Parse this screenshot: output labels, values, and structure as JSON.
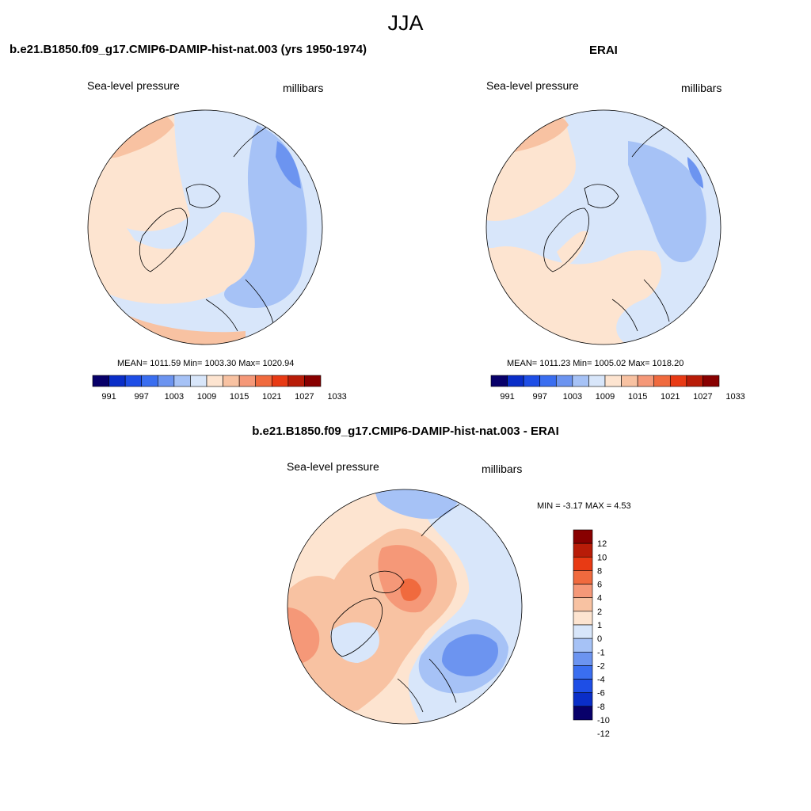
{
  "page_title": "JJA",
  "colors": {
    "abs_levels": [
      "#08006a",
      "#0a2ec8",
      "#1e4ee6",
      "#3a6ef0",
      "#6c94f0",
      "#a6c2f6",
      "#d8e6fa",
      "#fde4d0",
      "#f8c2a2",
      "#f59878",
      "#f06a3e",
      "#e83a14",
      "#b81c08",
      "#880000"
    ],
    "diff_levels": [
      "#08006a",
      "#0a2ec8",
      "#1e4ee6",
      "#3a6ef0",
      "#6c94f0",
      "#a6c2f6",
      "#d8e6fa",
      "#fde4d0",
      "#f8c2a2",
      "#f59878",
      "#f06a3e",
      "#e83a14",
      "#b81c08",
      "#880000"
    ]
  },
  "panels": [
    {
      "title": "b.e21.B1850.f09_g17.CMIP6-DAMIP-hist-nat.003 (yrs 1950-1974)",
      "left_label": "Sea-level pressure",
      "right_label": "millibars",
      "stats": "MEAN= 1011.59  Min= 1003.30  Max= 1020.94"
    },
    {
      "title": "ERAI",
      "left_label": "Sea-level pressure",
      "right_label": "millibars",
      "stats": "MEAN= 1011.23  Min= 1005.02  Max= 1018.20"
    },
    {
      "title": "b.e21.B1850.f09_g17.CMIP6-DAMIP-hist-nat.003 - ERAI",
      "left_label": "Sea-level pressure",
      "right_label": "millibars",
      "stats": "MIN =  -3.17 MAX =   4.53"
    }
  ],
  "chart_data": [
    {
      "type": "heatmap",
      "title": "b.e21.B1850.f09_g17.CMIP6-DAMIP-hist-nat.003 (yrs 1950-1974)",
      "variable": "Sea-level pressure",
      "units": "millibars",
      "colorbar_ticks": [
        "991",
        "997",
        "1003",
        "1009",
        "1015",
        "1021",
        "1027",
        "1033"
      ],
      "mean": 1011.59,
      "min": 1003.3,
      "max": 1020.94
    },
    {
      "type": "heatmap",
      "title": "ERAI",
      "variable": "Sea-level pressure",
      "units": "millibars",
      "colorbar_ticks": [
        "991",
        "997",
        "1003",
        "1009",
        "1015",
        "1021",
        "1027",
        "1033"
      ],
      "mean": 1011.23,
      "min": 1005.02,
      "max": 1018.2
    },
    {
      "type": "heatmap",
      "title": "b.e21.B1850.f09_g17.CMIP6-DAMIP-hist-nat.003 - ERAI",
      "variable": "Sea-level pressure",
      "units": "millibars",
      "colorbar_ticks": [
        "12",
        "10",
        "8",
        "6",
        "4",
        "2",
        "1",
        "0",
        "-1",
        "-2",
        "-4",
        "-6",
        "-8",
        "-10",
        "-12"
      ],
      "min": -3.17,
      "max": 4.53
    }
  ]
}
